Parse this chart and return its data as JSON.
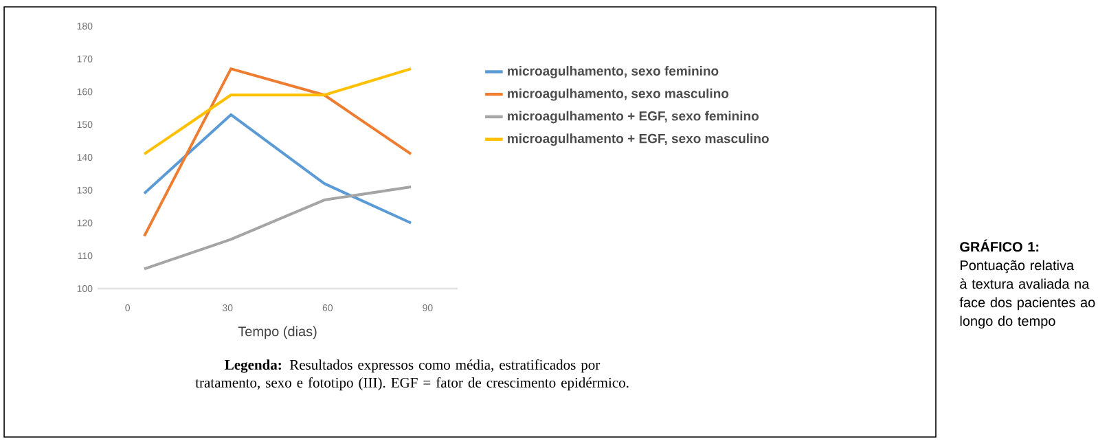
{
  "chart_data": {
    "type": "line",
    "xlabel": "Tempo (dias)",
    "x": [
      5,
      31,
      59,
      85
    ],
    "xlim": [
      -9,
      99
    ],
    "xticks": [
      0,
      30,
      60,
      90
    ],
    "ylim": [
      100,
      180
    ],
    "yticks": [
      100,
      110,
      120,
      130,
      140,
      150,
      160,
      170,
      180
    ],
    "legend": "right",
    "series": [
      {
        "name": "microagulhamento, sexo feminino",
        "color": "#5b9bd5",
        "values": [
          129,
          153,
          132,
          120
        ]
      },
      {
        "name": "microagulhamento, sexo masculino",
        "color": "#ed7d31",
        "values": [
          116,
          167,
          159,
          141
        ]
      },
      {
        "name": "microagulhamento + EGF,  sexo feminino",
        "color": "#a5a5a5",
        "values": [
          106,
          115,
          127,
          131
        ]
      },
      {
        "name": "microagulhamento + EGF,  sexo masculino",
        "color": "#ffc000",
        "values": [
          141,
          159,
          159,
          167
        ]
      }
    ],
    "annotations": [
      "**Legenda:** Resultados expressos como média, estratificados por tratamento, sexo e fototipo (III). EGF = fator de crescimento epidérmico.",
      "**GRÁFICO 1:** Pontuação relativa à textura avaliada na face dos pacientes ao longo do tempo"
    ]
  }
}
